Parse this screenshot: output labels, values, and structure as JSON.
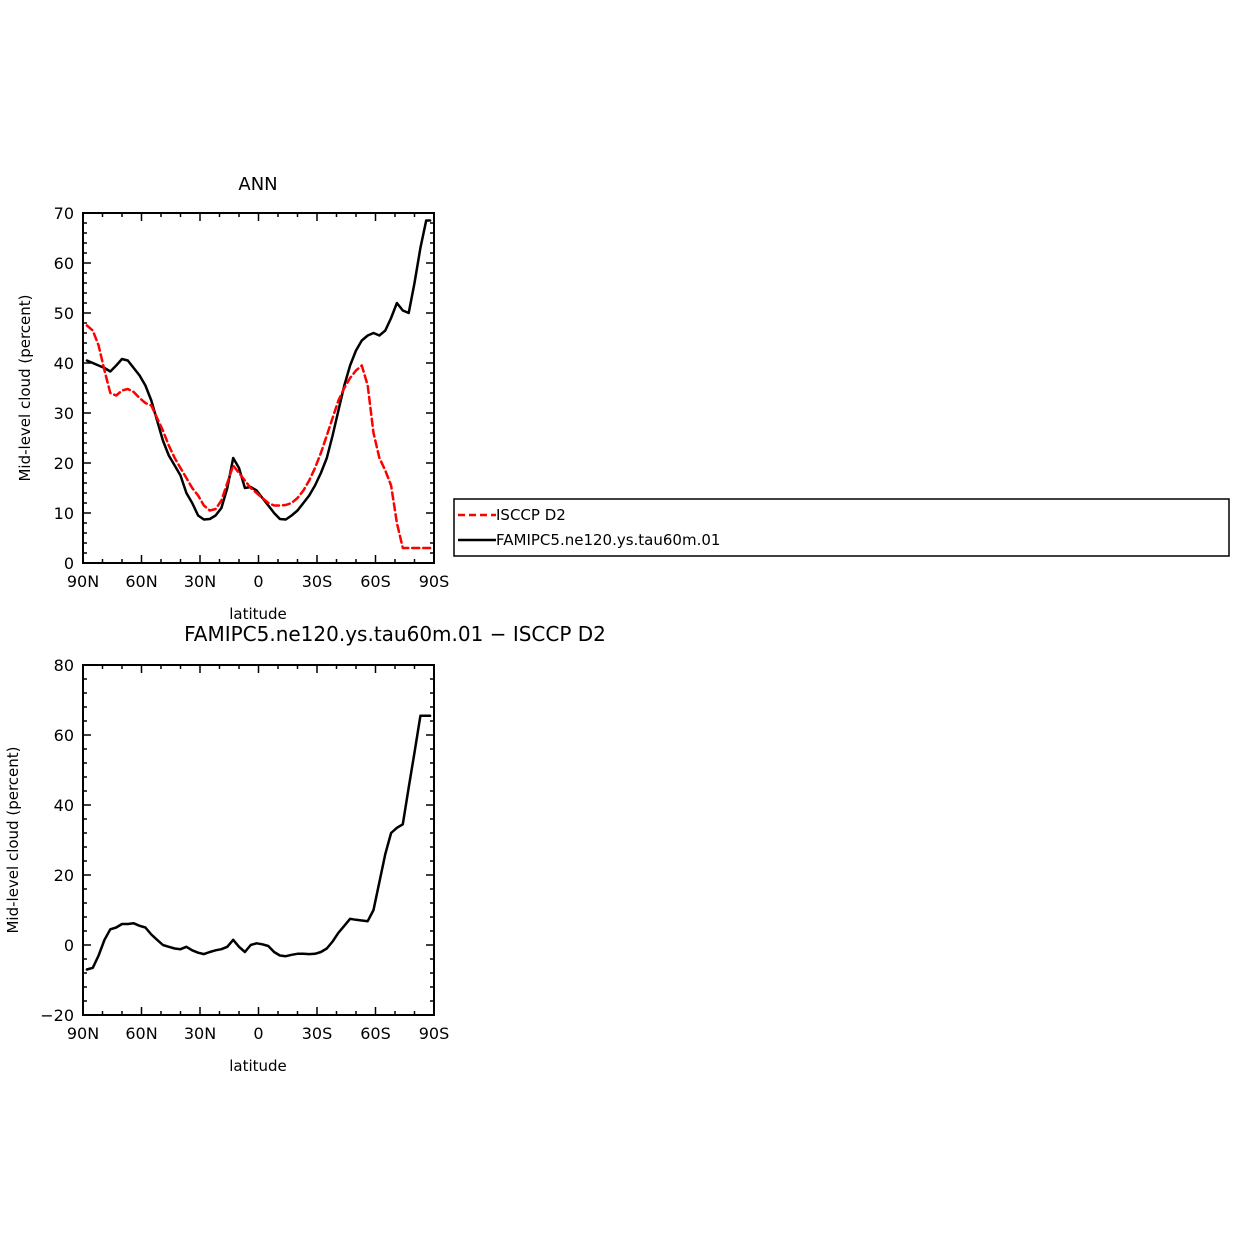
{
  "chart_data": [
    {
      "type": "line",
      "title": "ANN",
      "xlabel": "latitude",
      "ylabel": "Mid-level cloud (percent)",
      "xlim": [
        90,
        -90
      ],
      "ylim": [
        0,
        70
      ],
      "x_tick_values": [
        90,
        60,
        30,
        0,
        -30,
        -60,
        -90
      ],
      "x_tick_labels": [
        "90N",
        "60N",
        "30N",
        "0",
        "30S",
        "60S",
        "90S"
      ],
      "y_tick_values": [
        0,
        10,
        20,
        30,
        40,
        50,
        60,
        70
      ],
      "y_tick_labels": [
        "0",
        "10",
        "20",
        "30",
        "40",
        "50",
        "60",
        "70"
      ],
      "grid": false,
      "legend_position": "right",
      "series": [
        {
          "name": "ISCCP D2",
          "color": "#ff0000",
          "dash": "dashed",
          "x": [
            88,
            85,
            82,
            79,
            76,
            73,
            70,
            67,
            64,
            61,
            58,
            55,
            52,
            49,
            46,
            43,
            40,
            37,
            34,
            31,
            28,
            25,
            22,
            19,
            16,
            13,
            10,
            7,
            4,
            1,
            -2,
            -5,
            -8,
            -11,
            -14,
            -17,
            -20,
            -23,
            -26,
            -29,
            -32,
            -35,
            -38,
            -41,
            -44,
            -47,
            -50,
            -53,
            -56,
            -59,
            -62,
            -65,
            -68,
            -71,
            -74,
            -77,
            -80,
            -83,
            -86,
            -88
          ],
          "y": [
            47.5,
            46.5,
            43.5,
            38.5,
            34.0,
            33.5,
            34.5,
            34.8,
            34.2,
            33.0,
            32.0,
            31.5,
            29.0,
            26.5,
            23.5,
            21.0,
            19.0,
            17.0,
            15.0,
            13.5,
            11.5,
            10.5,
            10.8,
            12.5,
            16.0,
            19.5,
            18.0,
            16.5,
            15.0,
            14.0,
            13.0,
            12.0,
            11.5,
            11.5,
            11.6,
            12.0,
            13.0,
            14.5,
            16.5,
            19.0,
            22.0,
            25.5,
            29.0,
            32.5,
            35.0,
            37.0,
            38.5,
            39.5,
            35.5,
            26.0,
            21.0,
            18.5,
            15.5,
            8.0,
            3.0,
            3,
            3,
            3,
            3,
            3
          ]
        },
        {
          "name": "FAMIPC5.ne120.ys.tau60m.01",
          "color": "#000000",
          "dash": "solid",
          "x": [
            88,
            85,
            82,
            79,
            76,
            73,
            70,
            67,
            64,
            61,
            58,
            55,
            52,
            49,
            46,
            43,
            40,
            37,
            34,
            31,
            28,
            25,
            22,
            19,
            16,
            13,
            10,
            7,
            4,
            1,
            -2,
            -5,
            -8,
            -11,
            -14,
            -17,
            -20,
            -23,
            -26,
            -29,
            -32,
            -35,
            -38,
            -41,
            -44,
            -47,
            -50,
            -53,
            -56,
            -59,
            -62,
            -65,
            -68,
            -71,
            -74,
            -77,
            -80,
            -83,
            -86,
            -88
          ],
          "y": [
            40.5,
            40.0,
            39.5,
            39.0,
            38.3,
            39.5,
            40.8,
            40.5,
            39.0,
            37.5,
            35.5,
            32.5,
            28.5,
            24.5,
            21.5,
            19.5,
            17.5,
            14.0,
            12.0,
            9.5,
            8.7,
            8.8,
            9.5,
            11.0,
            15.0,
            21.0,
            19.0,
            15.0,
            15.2,
            14.5,
            13.0,
            11.5,
            10.0,
            8.8,
            8.7,
            9.5,
            10.5,
            12.0,
            13.5,
            15.5,
            18.0,
            21.0,
            25.5,
            30.5,
            35.5,
            39.5,
            42.5,
            44.5,
            45.5,
            46.0,
            45.5,
            46.5,
            49.0,
            52.0,
            50.5,
            50.0,
            56.0,
            63.0,
            68.5,
            68.5
          ]
        }
      ]
    },
    {
      "type": "line",
      "title": "FAMIPC5.ne120.ys.tau60m.01 − ISCCP D2",
      "xlabel": "latitude",
      "ylabel": "Mid-level cloud (percent)",
      "xlim": [
        90,
        -90
      ],
      "ylim": [
        -20,
        80
      ],
      "x_tick_values": [
        90,
        60,
        30,
        0,
        -30,
        -60,
        -90
      ],
      "x_tick_labels": [
        "90N",
        "60N",
        "30N",
        "0",
        "30S",
        "60S",
        "90S"
      ],
      "y_tick_values": [
        -20,
        0,
        20,
        40,
        60,
        80
      ],
      "y_tick_labels": [
        "−20",
        "0",
        "20",
        "40",
        "60",
        "80"
      ],
      "grid": false,
      "series": [
        {
          "color": "#000000",
          "dash": "solid",
          "x": [
            88,
            85,
            82,
            79,
            76,
            73,
            70,
            67,
            64,
            61,
            58,
            55,
            52,
            49,
            46,
            43,
            40,
            37,
            34,
            31,
            28,
            25,
            22,
            19,
            16,
            13,
            10,
            7,
            4,
            1,
            -2,
            -5,
            -8,
            -11,
            -14,
            -17,
            -20,
            -23,
            -26,
            -29,
            -32,
            -35,
            -38,
            -41,
            -44,
            -47,
            -50,
            -53,
            -56,
            -59,
            -62,
            -65,
            -68,
            -71,
            -74,
            -77,
            -80,
            -83,
            -86,
            -88
          ],
          "y": [
            -7.0,
            -6.5,
            -3.0,
            1.5,
            4.5,
            5.0,
            6.0,
            6.0,
            6.2,
            5.5,
            5.0,
            3.0,
            1.5,
            0.0,
            -0.5,
            -1.0,
            -1.2,
            -0.5,
            -1.5,
            -2.2,
            -2.6,
            -2.0,
            -1.5,
            -1.2,
            -0.5,
            1.5,
            -0.5,
            -2.0,
            0.0,
            0.5,
            0.2,
            -0.3,
            -2.0,
            -3.0,
            -3.2,
            -2.8,
            -2.5,
            -2.5,
            -2.6,
            -2.5,
            -2.0,
            -1.0,
            1.0,
            3.5,
            5.5,
            7.5,
            7.2,
            7.0,
            6.8,
            10.0,
            18.0,
            26.0,
            32.0,
            33.5,
            34.5,
            45.0,
            55.0,
            65.5,
            65.5,
            65.5
          ]
        }
      ]
    }
  ]
}
